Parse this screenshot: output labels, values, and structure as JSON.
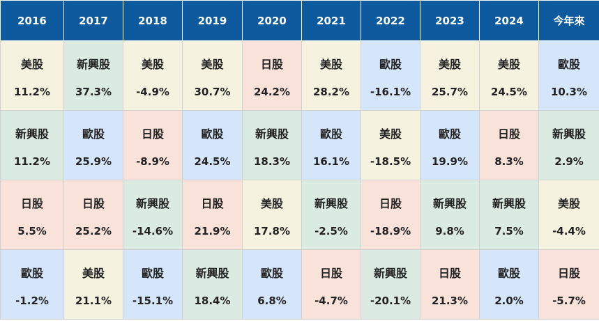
{
  "table": {
    "header": [
      "2016",
      "2017",
      "2018",
      "2019",
      "2020",
      "2021",
      "2022",
      "2023",
      "2024",
      "今年來"
    ],
    "market_colors": {
      "美股": "#f6f2e0",
      "新興股": "#dcebe2",
      "日股": "#f8e2da",
      "歐股": "#d5e6fa"
    },
    "header_color": "#0d5a9f",
    "rows": [
      [
        {
          "market": "美股",
          "value": "11.2%"
        },
        {
          "market": "新興股",
          "value": "37.3%"
        },
        {
          "market": "美股",
          "value": "-4.9%"
        },
        {
          "market": "美股",
          "value": "30.7%"
        },
        {
          "market": "日股",
          "value": "24.2%"
        },
        {
          "market": "美股",
          "value": "28.2%"
        },
        {
          "market": "歐股",
          "value": "-16.1%"
        },
        {
          "market": "美股",
          "value": "25.7%"
        },
        {
          "market": "美股",
          "value": "24.5%"
        },
        {
          "market": "歐股",
          "value": "10.3%"
        }
      ],
      [
        {
          "market": "新興股",
          "value": "11.2%"
        },
        {
          "market": "歐股",
          "value": "25.9%"
        },
        {
          "market": "日股",
          "value": "-8.9%"
        },
        {
          "market": "歐股",
          "value": "24.5%"
        },
        {
          "market": "新興股",
          "value": "18.3%"
        },
        {
          "market": "歐股",
          "value": "16.1%"
        },
        {
          "market": "美股",
          "value": "-18.5%"
        },
        {
          "market": "歐股",
          "value": "19.9%"
        },
        {
          "market": "日股",
          "value": "8.3%"
        },
        {
          "market": "新興股",
          "value": "2.9%"
        }
      ],
      [
        {
          "market": "日股",
          "value": "5.5%"
        },
        {
          "market": "日股",
          "value": "25.2%"
        },
        {
          "market": "新興股",
          "value": "-14.6%"
        },
        {
          "market": "日股",
          "value": "21.9%"
        },
        {
          "market": "美股",
          "value": "17.8%"
        },
        {
          "market": "新興股",
          "value": "-2.5%"
        },
        {
          "market": "日股",
          "value": "-18.9%"
        },
        {
          "market": "新興股",
          "value": "9.8%"
        },
        {
          "market": "新興股",
          "value": "7.5%"
        },
        {
          "market": "美股",
          "value": "-4.4%"
        }
      ],
      [
        {
          "market": "歐股",
          "value": "-1.2%"
        },
        {
          "market": "美股",
          "value": "21.1%"
        },
        {
          "market": "歐股",
          "value": "-15.1%"
        },
        {
          "market": "新興股",
          "value": "18.4%"
        },
        {
          "market": "歐股",
          "value": "6.8%"
        },
        {
          "market": "日股",
          "value": "-4.7%"
        },
        {
          "market": "新興股",
          "value": "-20.1%"
        },
        {
          "market": "日股",
          "value": "21.3%"
        },
        {
          "market": "歐股",
          "value": "2.0%"
        },
        {
          "market": "日股",
          "value": "-5.7%"
        }
      ]
    ]
  }
}
